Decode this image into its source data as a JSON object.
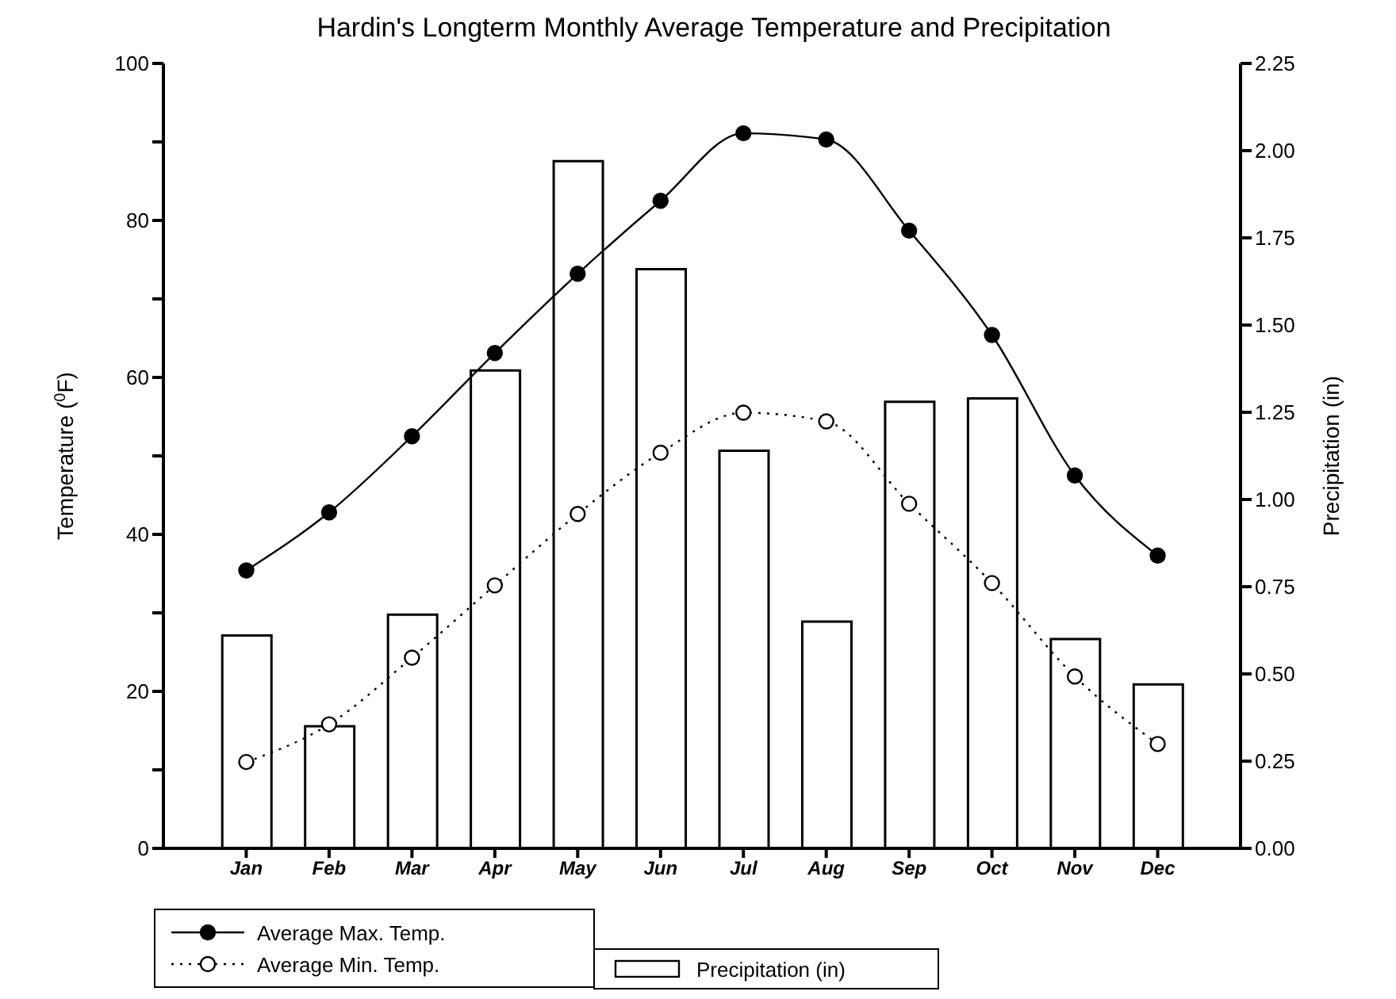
{
  "chart_data": {
    "type": "bar",
    "title": "Hardin's Longterm Monthly Average Temperature and Precipitation",
    "ylabel": "Temperature ($^{0}$F)",
    "y2label": "Precipitation (in)",
    "categories": [
      "Jan",
      "Feb",
      "Mar",
      "Apr",
      "May",
      "Jun",
      "Jul",
      "Aug",
      "Sep",
      "Oct",
      "Nov",
      "Dec"
    ],
    "series": [
      {
        "name": "Average Max. Temp.",
        "type": "line",
        "color": "#000000",
        "marker": "circle",
        "line_style": "solid",
        "values": [
          35.4,
          42.8,
          52.5,
          63.1,
          73.2,
          82.5,
          91.1,
          90.3,
          78.7,
          65.4,
          47.5,
          37.3
        ]
      },
      {
        "name": "Average Min. Temp.",
        "type": "line",
        "color": "#000000",
        "marker": "circle",
        "line_style": "dotted",
        "values": [
          11.0,
          15.8,
          24.3,
          33.5,
          42.6,
          50.4,
          55.5,
          54.4,
          43.9,
          33.8,
          21.9,
          13.3
        ]
      },
      {
        "name": "Precipitation (in)",
        "axis": "y2",
        "color": "#ffffff",
        "values": [
          0.61,
          0.35,
          0.67,
          1.37,
          1.97,
          1.66,
          1.14,
          0.65,
          1.28,
          1.29,
          0.6,
          0.47
        ]
      }
    ],
    "ylim": [
      0,
      100
    ],
    "yticks": [
      0,
      {
        "value": 10,
        "label": null
      },
      20,
      {
        "value": 30,
        "label": null
      },
      40,
      {
        "value": 50,
        "label": null
      },
      60,
      {
        "value": 70,
        "label": null
      },
      80,
      {
        "value": 90,
        "label": null
      },
      100
    ],
    "y2lim": [
      0,
      2.25
    ],
    "y2ticks": [
      {
        "value": 0,
        "label": "0.00"
      },
      {
        "value": 0.25,
        "label": "0.25"
      },
      {
        "value": 0.5,
        "label": "0.50"
      },
      {
        "value": 0.75,
        "label": "0.75"
      },
      {
        "value": 1,
        "label": "1.00"
      },
      {
        "value": 1.25,
        "label": "1.25"
      },
      {
        "value": 1.5,
        "label": "1.50"
      },
      {
        "value": 1.75,
        "label": "1.75"
      },
      {
        "value": 2,
        "label": "2.00"
      },
      {
        "value": 2.25,
        "label": "2.25"
      }
    ],
    "grid": false,
    "legend": "bottom"
  }
}
